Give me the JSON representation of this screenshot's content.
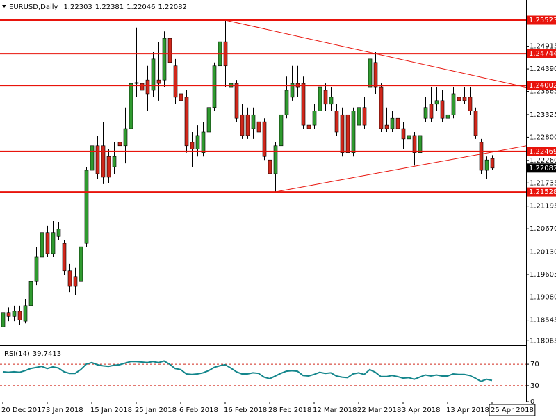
{
  "chart_data": [
    {
      "type": "candlestick",
      "title": "EURUSD,Daily",
      "categories": [
        "20 Dec 2017",
        null,
        null,
        null,
        null,
        null,
        null,
        null,
        "3 Jan 2018",
        null,
        null,
        null,
        null,
        null,
        null,
        null,
        "15 Jan 2018",
        null,
        null,
        null,
        null,
        null,
        null,
        null,
        "25 Jan 2018",
        null,
        null,
        null,
        null,
        null,
        null,
        null,
        "6 Feb 2018",
        null,
        null,
        null,
        null,
        null,
        null,
        null,
        "16 Feb 2018",
        null,
        null,
        null,
        null,
        null,
        null,
        null,
        "28 Feb 2018",
        null,
        null,
        null,
        null,
        null,
        null,
        null,
        "12 Mar 2018",
        null,
        null,
        null,
        null,
        null,
        null,
        null,
        "22 Mar 2018",
        null,
        null,
        null,
        null,
        null,
        null,
        null,
        "3 Apr 2018",
        null,
        null,
        null,
        null,
        null,
        null,
        null,
        "13 Apr 2018",
        null,
        null,
        null,
        null,
        null,
        null,
        null,
        "25 Apr 2018"
      ],
      "open": [
        1.1839,
        1.1872,
        1.1863,
        1.1875,
        1.1852,
        1.1888,
        1.1944,
        1.2001,
        1.2058,
        1.2009,
        1.2049,
        1.2033,
        1.1969,
        1.1956,
        1.1944,
        1.2033,
        1.2203,
        1.226,
        1.226,
        1.2235,
        1.2211,
        1.2268,
        1.226,
        1.23,
        1.2405,
        1.2405,
        1.2413,
        1.2389,
        1.2413,
        1.2413,
        1.251,
        1.2446,
        1.2381,
        1.2373,
        1.2268,
        1.2252,
        1.2244,
        1.2292,
        1.2349,
        1.2446,
        1.2502,
        1.2397,
        1.2405,
        1.2332,
        1.2332,
        1.23,
        1.2316,
        1.2316,
        1.2227,
        1.2195,
        1.226,
        1.2332,
        1.2373,
        1.2405,
        1.2405,
        1.2308,
        1.2308,
        1.2341,
        1.2389,
        1.2357,
        1.2341,
        1.2332,
        1.2332,
        1.2244,
        1.2308,
        1.2349,
        1.2397,
        1.2454,
        1.2397,
        1.2308,
        1.23,
        1.2324,
        1.23,
        1.2276,
        1.2284,
        1.2244,
        1.2324,
        1.2357,
        1.2357,
        1.2365,
        1.2324,
        1.2332,
        1.2373,
        1.2373,
        1.2373,
        1.2341,
        1.2268,
        1.2203,
        1.22303
      ],
      "high": [
        1.1904,
        1.1884,
        1.1888,
        1.1888,
        1.1904,
        1.196,
        1.2025,
        1.2074,
        1.2074,
        1.2085,
        1.2082,
        1.2041,
        1.1985,
        1.1977,
        1.2049,
        1.2211,
        1.23,
        1.2284,
        1.2316,
        1.2252,
        1.2268,
        1.23,
        1.2349,
        1.2421,
        1.2535,
        1.2462,
        1.2446,
        1.2478,
        1.2502,
        1.2526,
        1.2526,
        1.2462,
        1.2405,
        1.2389,
        1.2292,
        1.2308,
        1.2316,
        1.2373,
        1.2454,
        1.251,
        1.25523,
        1.2454,
        1.2413,
        1.2357,
        1.2349,
        1.2349,
        1.2349,
        1.2324,
        1.2252,
        1.2268,
        1.2341,
        1.2421,
        1.2446,
        1.2446,
        1.2421,
        1.2324,
        1.2357,
        1.2413,
        1.2405,
        1.2397,
        1.2357,
        1.2349,
        1.2341,
        1.2349,
        1.2365,
        1.2373,
        1.247,
        1.2478,
        1.2405,
        1.2349,
        1.2341,
        1.2349,
        1.2316,
        1.23,
        1.2292,
        1.2308,
        1.2373,
        1.2397,
        1.2397,
        1.2389,
        1.2357,
        1.2397,
        1.2413,
        1.2397,
        1.2397,
        1.2349,
        1.2276,
        1.2235,
        1.22381
      ],
      "low": [
        1.1815,
        1.1852,
        1.1852,
        1.1843,
        1.1847,
        1.188,
        1.1936,
        1.1993,
        1.2001,
        1.2001,
        1.2041,
        1.196,
        1.192,
        1.1912,
        1.1933,
        1.2025,
        1.2195,
        1.2182,
        1.2171,
        1.2174,
        1.2195,
        1.2211,
        1.2219,
        1.2292,
        1.2373,
        1.2357,
        1.2341,
        1.2373,
        1.2365,
        1.2397,
        1.2405,
        1.2357,
        1.2316,
        1.2244,
        1.2211,
        1.2235,
        1.2235,
        1.2284,
        1.2341,
        1.2438,
        1.2397,
        1.2389,
        1.2316,
        1.2276,
        1.2276,
        1.2276,
        1.2284,
        1.2227,
        1.2182,
        1.21528,
        1.2244,
        1.2324,
        1.2365,
        1.2373,
        1.23,
        1.2292,
        1.23,
        1.2332,
        1.2341,
        1.2341,
        1.2284,
        1.2235,
        1.2235,
        1.2235,
        1.23,
        1.23,
        1.2381,
        1.2381,
        1.2292,
        1.2292,
        1.2292,
        1.2284,
        1.2252,
        1.226,
        1.2214,
        1.2227,
        1.2316,
        1.2316,
        1.2341,
        1.2316,
        1.2316,
        1.2324,
        1.2357,
        1.2357,
        1.2332,
        1.2276,
        1.2195,
        1.2182,
        1.22046
      ],
      "close": [
        1.1872,
        1.1863,
        1.1875,
        1.1855,
        1.1888,
        1.1944,
        1.2001,
        1.2058,
        1.2009,
        1.2058,
        1.2066,
        1.1969,
        1.1933,
        1.1933,
        1.2025,
        1.2203,
        1.226,
        1.2195,
        1.2187,
        1.2187,
        1.2235,
        1.226,
        1.23,
        1.2405,
        1.2407,
        1.2389,
        1.2381,
        1.2462,
        1.2405,
        1.251,
        1.2454,
        1.2373,
        1.2365,
        1.226,
        1.2252,
        1.2284,
        1.2292,
        1.2349,
        1.2446,
        1.2502,
        1.2446,
        1.2405,
        1.2324,
        1.2284,
        1.2284,
        1.2332,
        1.2292,
        1.2235,
        1.2195,
        1.226,
        1.2332,
        1.2389,
        1.2405,
        1.2397,
        1.2308,
        1.23,
        1.2341,
        1.2397,
        1.2357,
        1.2373,
        1.2292,
        1.2244,
        1.2244,
        1.2341,
        1.2349,
        1.2308,
        1.2462,
        1.2397,
        1.23,
        1.23,
        1.2324,
        1.23,
        1.2276,
        1.2284,
        1.2244,
        1.2284,
        1.2349,
        1.2324,
        1.2365,
        1.2324,
        1.2332,
        1.2381,
        1.2365,
        1.2365,
        1.2341,
        1.2284,
        1.2203,
        1.2227,
        1.22082
      ],
      "up_color": "#2f9a2f",
      "down_color": "#d0271b",
      "ylim": [
        1.17956,
        1.25992
      ],
      "yticks": [
        1.24915,
        {
          "value": 1.2439,
          "label": "1.24390"
        },
        1.23865,
        1.23325,
        {
          "value": 1.228,
          "label": "1.22800"
        },
        {
          "value": 1.2226,
          "label": "1.22260"
        },
        1.21735,
        1.21195,
        {
          "value": 1.2067,
          "label": "1.20670"
        },
        {
          "value": 1.2013,
          "label": "1.20130"
        },
        1.19605,
        {
          "value": 1.1908,
          "label": "1.19080"
        },
        1.18545,
        1.18065
      ],
      "levels": [
        1.25523,
        1.24744,
        1.24002,
        1.22469,
        1.21528
      ],
      "level_color": "#e8140c",
      "trendlines": [
        {
          "start_index": 40,
          "start_price": 1.25523,
          "end_index": 67,
          "end_price": 1.24744
        },
        {
          "start_index": 49,
          "start_price": 1.21528,
          "end_index": 87,
          "end_price": 1.2243
        }
      ]
    },
    {
      "type": "line",
      "title": "RSI(14)",
      "series": [
        {
          "name": "RSI(14)",
          "color": "#14868c",
          "values": [
            56,
            55,
            56,
            55,
            58,
            62,
            64,
            66,
            62,
            65,
            63,
            56,
            53,
            53,
            60,
            70,
            73,
            69,
            67,
            66,
            68,
            69,
            72,
            75,
            75,
            74,
            73,
            75,
            73,
            76,
            70,
            62,
            60,
            52,
            51,
            52,
            54,
            58,
            64,
            67,
            69,
            63,
            56,
            52,
            52,
            54,
            53,
            46,
            43,
            48,
            53,
            57,
            58,
            57,
            49,
            48,
            51,
            55,
            53,
            54,
            48,
            46,
            45,
            52,
            54,
            51,
            60,
            55,
            47,
            47,
            49,
            47,
            44,
            45,
            42,
            46,
            50,
            48,
            50,
            48,
            48,
            52,
            51,
            51,
            49,
            44,
            38,
            42,
            39.7413
          ]
        }
      ],
      "ylim": [
        0,
        100
      ],
      "yticks": [
        0,
        30,
        70
      ],
      "levels": [
        30,
        70
      ],
      "level_color": "#d0271b"
    }
  ]
}
